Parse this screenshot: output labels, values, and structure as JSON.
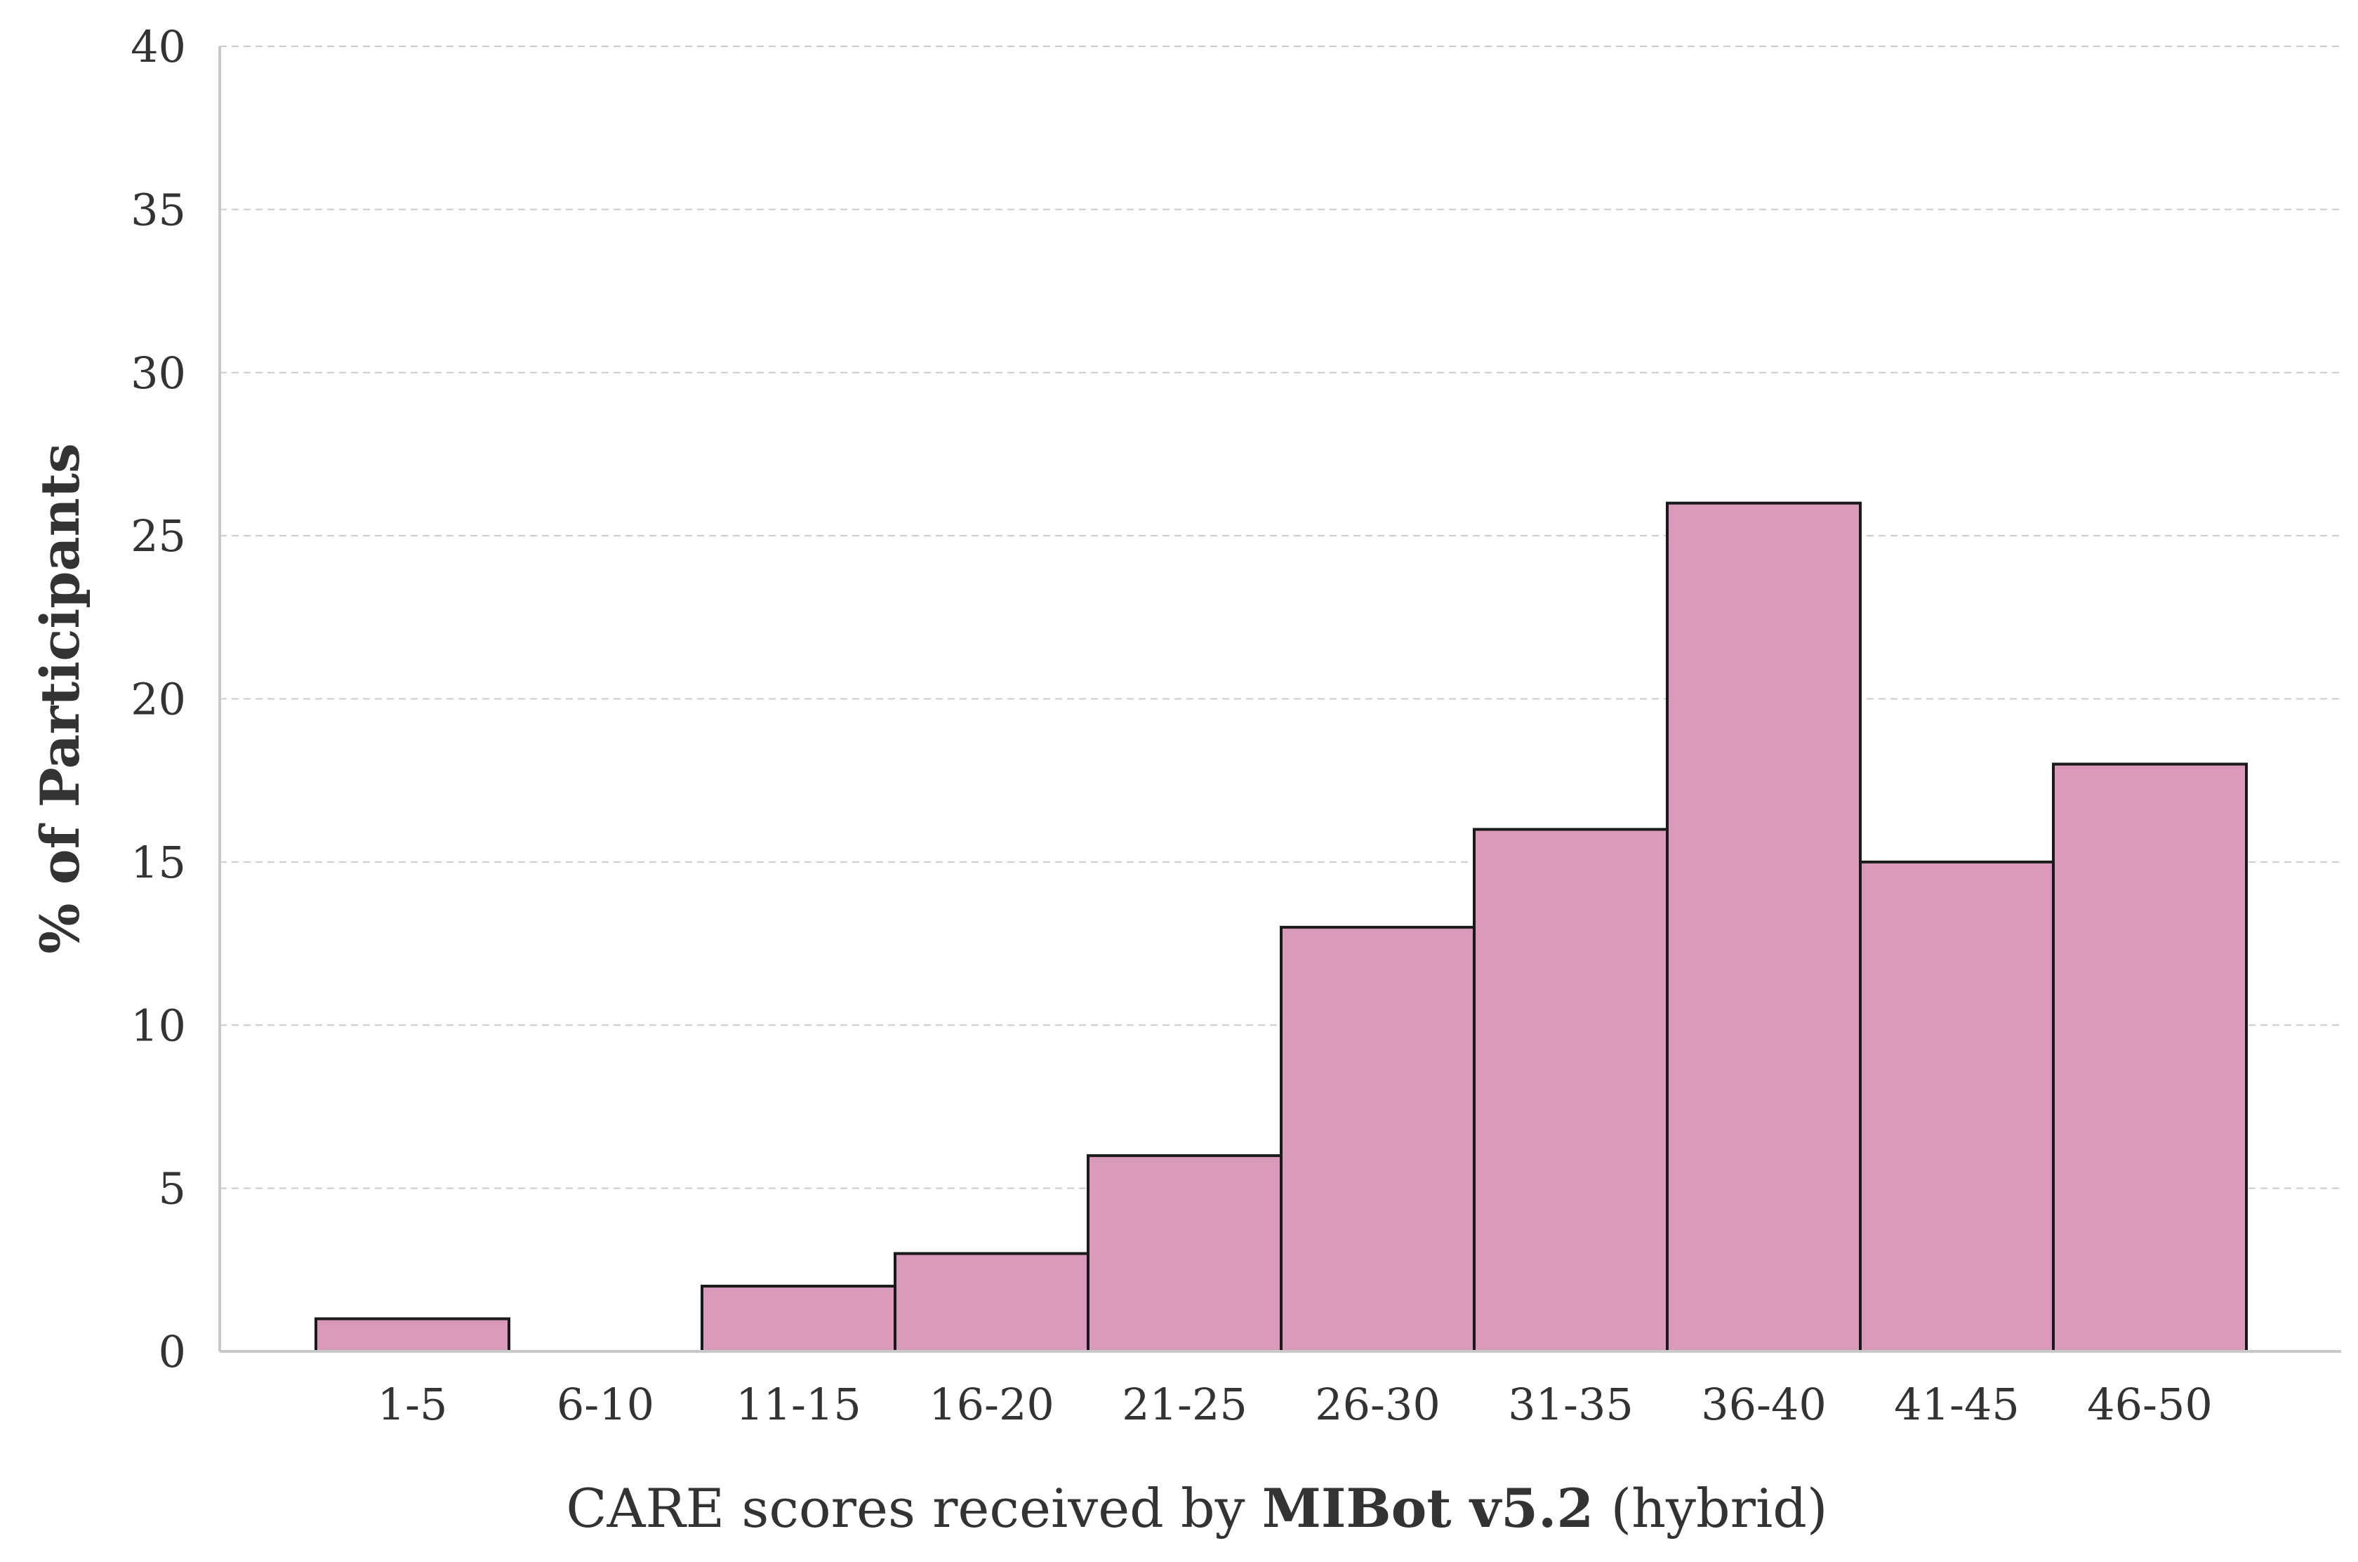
{
  "chart_data": {
    "type": "bar",
    "categories": [
      "1-5",
      "6-10",
      "11-15",
      "16-20",
      "21-25",
      "26-30",
      "31-35",
      "36-40",
      "41-45",
      "46-50"
    ],
    "values": [
      1,
      0,
      2,
      3,
      6,
      13,
      16,
      26,
      15,
      18
    ],
    "ylabel": "% of Participants",
    "xlabel": {
      "prefix": "CARE scores received by ",
      "emphasis": "MIBot v5.2",
      "suffix": " (hybrid)"
    },
    "yticks": [
      "0",
      "5",
      "10",
      "15",
      "20",
      "25",
      "30",
      "35",
      "40"
    ],
    "ylim": [
      0,
      40
    ],
    "grid": "horizontal",
    "bar_color": "#d899bb",
    "edge_color": "#1a1a1a"
  }
}
